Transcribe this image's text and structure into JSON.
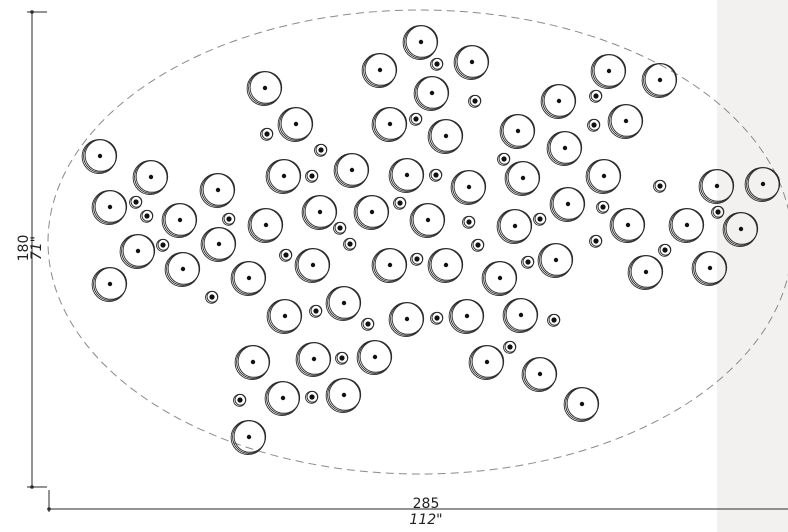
{
  "dimensions": {
    "height_cm": "180",
    "height_in": "71\"",
    "width_cm": "285",
    "width_in": "112\""
  },
  "colors": {
    "line": "#2a2a2a",
    "outline": "#8a8a8a",
    "side_panel": "#f2f1f0"
  },
  "icons": {
    "large": "large-ring-icon",
    "small": "small-ring-icon"
  }
}
